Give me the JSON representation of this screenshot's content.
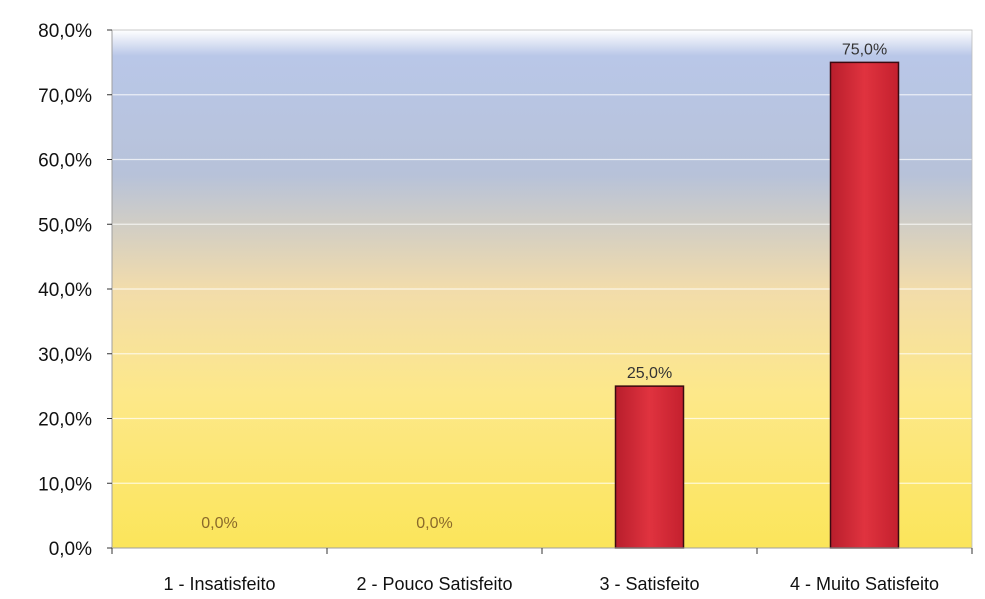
{
  "chart_data": {
    "type": "bar",
    "categories": [
      "1 - Insatisfeito",
      "2 - Pouco Satisfeito",
      "3 - Satisfeito",
      "4 - Muito Satisfeito"
    ],
    "values": [
      0.0,
      0.0,
      25.0,
      75.0
    ],
    "data_labels": [
      "0,0%",
      "0,0%",
      "25,0%",
      "75,0%"
    ],
    "y_ticks": [
      "0,0%",
      "10,0%",
      "20,0%",
      "30,0%",
      "40,0%",
      "50,0%",
      "60,0%",
      "70,0%",
      "80,0%"
    ],
    "ylim": [
      0,
      80
    ],
    "grid": true,
    "legend": "none",
    "colors": {
      "bar": "#d42a3a",
      "bar_stroke": "#3a0a10",
      "background_top": "#aebfe2",
      "background_bottom": "#fbe75a"
    }
  }
}
